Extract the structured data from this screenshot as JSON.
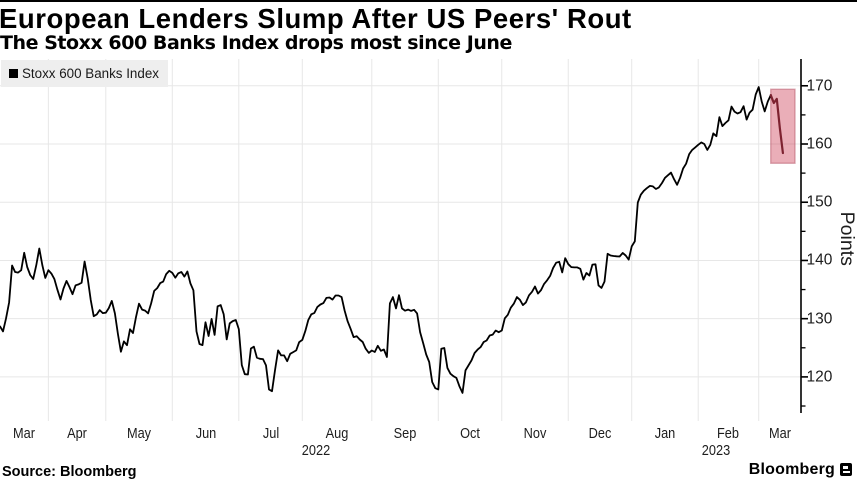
{
  "header": {
    "title": "European Lenders Slump After US Peers' Rout",
    "subtitle": "The Stoxx 600 Banks Index drops most since June"
  },
  "footer": {
    "source": "Source: Bloomberg",
    "brand": "Bloomberg"
  },
  "chart_data": {
    "type": "line",
    "title": "European Lenders Slump After US Peers' Rout",
    "subtitle": "The Stoxx 600 Banks Index drops most since June",
    "source": "Source: Bloomberg",
    "ylabel": "Points",
    "ylim": [
      113.8,
      174.6
    ],
    "yticks": [
      120,
      130,
      140,
      150,
      160,
      170
    ],
    "yticks_minor": [
      115,
      125,
      135,
      145,
      155,
      165
    ],
    "grid": true,
    "legend_position": "top-left",
    "x_axis": {
      "unit": "trading-day",
      "start_date": "2022-03-10",
      "end_date": "2023-03-13",
      "axis_extra_steps": 6,
      "month_label_format": "short",
      "year_labels": [
        "2022",
        "2023"
      ]
    },
    "series": [
      {
        "name": "Stoxx 600 Banks Index",
        "color": "#000000",
        "dates": [
          "2022-03-10",
          "2022-03-11",
          "2022-03-14",
          "2022-03-15",
          "2022-03-16",
          "2022-03-17",
          "2022-03-18",
          "2022-03-21",
          "2022-03-22",
          "2022-03-23",
          "2022-03-24",
          "2022-03-25",
          "2022-03-28",
          "2022-03-29",
          "2022-03-30",
          "2022-03-31",
          "2022-04-01",
          "2022-04-04",
          "2022-04-05",
          "2022-04-06",
          "2022-04-07",
          "2022-04-08",
          "2022-04-11",
          "2022-04-12",
          "2022-04-13",
          "2022-04-14",
          "2022-04-19",
          "2022-04-20",
          "2022-04-21",
          "2022-04-22",
          "2022-04-25",
          "2022-04-26",
          "2022-04-27",
          "2022-04-28",
          "2022-04-29",
          "2022-05-02",
          "2022-05-03",
          "2022-05-04",
          "2022-05-05",
          "2022-05-06",
          "2022-05-09",
          "2022-05-10",
          "2022-05-11",
          "2022-05-12",
          "2022-05-13",
          "2022-05-16",
          "2022-05-17",
          "2022-05-18",
          "2022-05-19",
          "2022-05-20",
          "2022-05-23",
          "2022-05-24",
          "2022-05-25",
          "2022-05-26",
          "2022-05-27",
          "2022-05-30",
          "2022-05-31",
          "2022-06-01",
          "2022-06-02",
          "2022-06-03",
          "2022-06-06",
          "2022-06-07",
          "2022-06-08",
          "2022-06-09",
          "2022-06-10",
          "2022-06-13",
          "2022-06-14",
          "2022-06-15",
          "2022-06-16",
          "2022-06-17",
          "2022-06-20",
          "2022-06-21",
          "2022-06-22",
          "2022-06-23",
          "2022-06-24",
          "2022-06-27",
          "2022-06-28",
          "2022-06-29",
          "2022-06-30",
          "2022-07-01",
          "2022-07-04",
          "2022-07-05",
          "2022-07-06",
          "2022-07-07",
          "2022-07-08",
          "2022-07-11",
          "2022-07-12",
          "2022-07-13",
          "2022-07-14",
          "2022-07-15",
          "2022-07-18",
          "2022-07-19",
          "2022-07-20",
          "2022-07-21",
          "2022-07-22",
          "2022-07-25",
          "2022-07-26",
          "2022-07-27",
          "2022-07-28",
          "2022-07-29",
          "2022-08-01",
          "2022-08-02",
          "2022-08-03",
          "2022-08-04",
          "2022-08-05",
          "2022-08-08",
          "2022-08-09",
          "2022-08-10",
          "2022-08-11",
          "2022-08-12",
          "2022-08-15",
          "2022-08-16",
          "2022-08-17",
          "2022-08-18",
          "2022-08-19",
          "2022-08-22",
          "2022-08-23",
          "2022-08-24",
          "2022-08-25",
          "2022-08-26",
          "2022-08-29",
          "2022-08-30",
          "2022-08-31",
          "2022-09-01",
          "2022-09-02",
          "2022-09-05",
          "2022-09-06",
          "2022-09-07",
          "2022-09-08",
          "2022-09-09",
          "2022-09-12",
          "2022-09-13",
          "2022-09-14",
          "2022-09-15",
          "2022-09-16",
          "2022-09-19",
          "2022-09-20",
          "2022-09-21",
          "2022-09-22",
          "2022-09-23",
          "2022-09-26",
          "2022-09-27",
          "2022-09-28",
          "2022-09-29",
          "2022-09-30",
          "2022-10-03",
          "2022-10-04",
          "2022-10-05",
          "2022-10-06",
          "2022-10-07",
          "2022-10-10",
          "2022-10-11",
          "2022-10-12",
          "2022-10-13",
          "2022-10-14",
          "2022-10-17",
          "2022-10-18",
          "2022-10-19",
          "2022-10-20",
          "2022-10-21",
          "2022-10-24",
          "2022-10-25",
          "2022-10-26",
          "2022-10-27",
          "2022-10-28",
          "2022-10-31",
          "2022-11-01",
          "2022-11-02",
          "2022-11-03",
          "2022-11-04",
          "2022-11-07",
          "2022-11-08",
          "2022-11-09",
          "2022-11-10",
          "2022-11-11",
          "2022-11-14",
          "2022-11-15",
          "2022-11-16",
          "2022-11-17",
          "2022-11-18",
          "2022-11-21",
          "2022-11-22",
          "2022-11-23",
          "2022-11-24",
          "2022-11-25",
          "2022-11-28",
          "2022-11-29",
          "2022-11-30",
          "2022-12-01",
          "2022-12-02",
          "2022-12-05",
          "2022-12-06",
          "2022-12-07",
          "2022-12-08",
          "2022-12-09",
          "2022-12-12",
          "2022-12-13",
          "2022-12-14",
          "2022-12-15",
          "2022-12-16",
          "2022-12-19",
          "2022-12-20",
          "2022-12-21",
          "2022-12-22",
          "2022-12-23",
          "2022-12-27",
          "2022-12-28",
          "2022-12-29",
          "2022-12-30",
          "2023-01-02",
          "2023-01-03",
          "2023-01-04",
          "2023-01-05",
          "2023-01-06",
          "2023-01-09",
          "2023-01-10",
          "2023-01-11",
          "2023-01-12",
          "2023-01-13",
          "2023-01-16",
          "2023-01-17",
          "2023-01-18",
          "2023-01-19",
          "2023-01-20",
          "2023-01-23",
          "2023-01-24",
          "2023-01-25",
          "2023-01-26",
          "2023-01-27",
          "2023-01-30",
          "2023-01-31",
          "2023-02-01",
          "2023-02-02",
          "2023-02-03",
          "2023-02-06",
          "2023-02-07",
          "2023-02-08",
          "2023-02-09",
          "2023-02-10",
          "2023-02-13",
          "2023-02-14",
          "2023-02-15",
          "2023-02-16",
          "2023-02-17",
          "2023-02-20",
          "2023-02-21",
          "2023-02-22",
          "2023-02-23",
          "2023-02-24",
          "2023-02-27",
          "2023-02-28",
          "2023-03-01",
          "2023-03-02",
          "2023-03-03",
          "2023-03-06",
          "2023-03-07",
          "2023-03-08",
          "2023-03-09",
          "2023-03-10",
          "2023-03-13"
        ],
        "values": [
          128.68,
          127.82,
          130.02,
          132.77,
          139.14,
          138.02,
          137.92,
          138.32,
          141.31,
          138.88,
          137.51,
          136.82,
          139.21,
          142.06,
          139.22,
          137.0,
          138.32,
          137.75,
          136.79,
          134.97,
          133.3,
          135.18,
          136.48,
          135.42,
          134.21,
          135.73,
          135.88,
          136.18,
          139.82,
          136.92,
          133.24,
          130.42,
          130.72,
          131.48,
          130.95,
          131.02,
          131.81,
          133.06,
          130.91,
          127.38,
          124.33,
          126.09,
          125.45,
          128.18,
          127.54,
          130.27,
          132.58,
          131.56,
          131.39,
          130.91,
          132.6,
          134.77,
          135.25,
          136.11,
          136.37,
          137.66,
          138.22,
          137.87,
          137.04,
          137.79,
          138.02,
          137.23,
          138.1,
          136.06,
          134.88,
          127.81,
          125.65,
          125.46,
          129.38,
          127.03,
          129.97,
          127.22,
          132.13,
          132.33,
          130.76,
          126.44,
          129.19,
          129.58,
          129.78,
          128.21,
          122.03,
          120.46,
          120.42,
          124.87,
          125.19,
          123.3,
          123.11,
          123.05,
          121.98,
          117.84,
          117.55,
          121.26,
          124.55,
          123.69,
          123.69,
          122.69,
          123.97,
          124.26,
          124.55,
          125.98,
          126.36,
          127.86,
          129.78,
          130.75,
          130.99,
          132.03,
          132.43,
          132.67,
          133.56,
          133.64,
          133.27,
          133.98,
          133.98,
          133.7,
          131.41,
          129.56,
          128.27,
          126.84,
          126.99,
          126.42,
          125.99,
          124.85,
          124.13,
          124.53,
          124.27,
          125.34,
          124.49,
          124.7,
          123.42,
          132.63,
          133.7,
          131.77,
          134.04,
          131.77,
          131.37,
          131.56,
          131.34,
          131.52,
          130.91,
          127.7,
          125.77,
          123.85,
          122.56,
          119.13,
          118.06,
          117.85,
          124.83,
          124.97,
          121.54,
          120.55,
          120.12,
          119.83,
          118.4,
          117.26,
          121.12,
          121.97,
          122.83,
          124.11,
          124.69,
          125.11,
          125.97,
          126.26,
          127.11,
          127.26,
          127.97,
          127.68,
          127.97,
          130.07,
          130.67,
          131.89,
          132.57,
          133.71,
          133.25,
          132.34,
          132.8,
          134.01,
          134.62,
          135.53,
          134.31,
          134.92,
          135.98,
          136.59,
          137.35,
          138.71,
          139.62,
          139.77,
          137.95,
          140.38,
          139.35,
          138.86,
          138.8,
          138.8,
          138.56,
          136.71,
          137.85,
          137.42,
          139.28,
          139.34,
          135.71,
          135.28,
          136.37,
          141.14,
          140.85,
          140.76,
          140.71,
          140.68,
          141.28,
          140.85,
          140.14,
          142.42,
          143.28,
          149.95,
          151.29,
          151.96,
          152.41,
          152.81,
          152.72,
          152.27,
          152.55,
          153.3,
          154.19,
          154.64,
          155.09,
          153.97,
          152.99,
          154.19,
          155.8,
          156.62,
          158.27,
          158.99,
          159.42,
          159.87,
          160.27,
          160.0,
          158.98,
          159.87,
          161.82,
          161.34,
          164.6,
          163.08,
          163.61,
          164.07,
          166.42,
          165.57,
          165.24,
          165.46,
          166.5,
          164.2,
          165.4,
          165.9,
          168.5,
          169.77,
          167.3,
          165.6,
          167.3,
          168.4,
          167.05,
          167.75,
          162.8,
          158.45
        ]
      }
    ],
    "highlight_segment": {
      "from": "2023-03-07",
      "color": "#7d2230"
    },
    "highlight_box": {
      "from": "2023-03-07",
      "to": "2023-03-17",
      "top": 169.4,
      "bottom": 156.7,
      "fill": "#c82a44",
      "fill_opacity": 0.38,
      "stroke": "#bb6071",
      "stroke_opacity": 0.55
    },
    "colors": {
      "grid": "#e7e7e7",
      "axis": "#000000",
      "tick_label": "#1d1d1d"
    },
    "months_short": [
      "Jan",
      "Feb",
      "Mar",
      "Apr",
      "May",
      "Jun",
      "Jul",
      "Aug",
      "Sep",
      "Oct",
      "Nov",
      "Dec"
    ]
  }
}
